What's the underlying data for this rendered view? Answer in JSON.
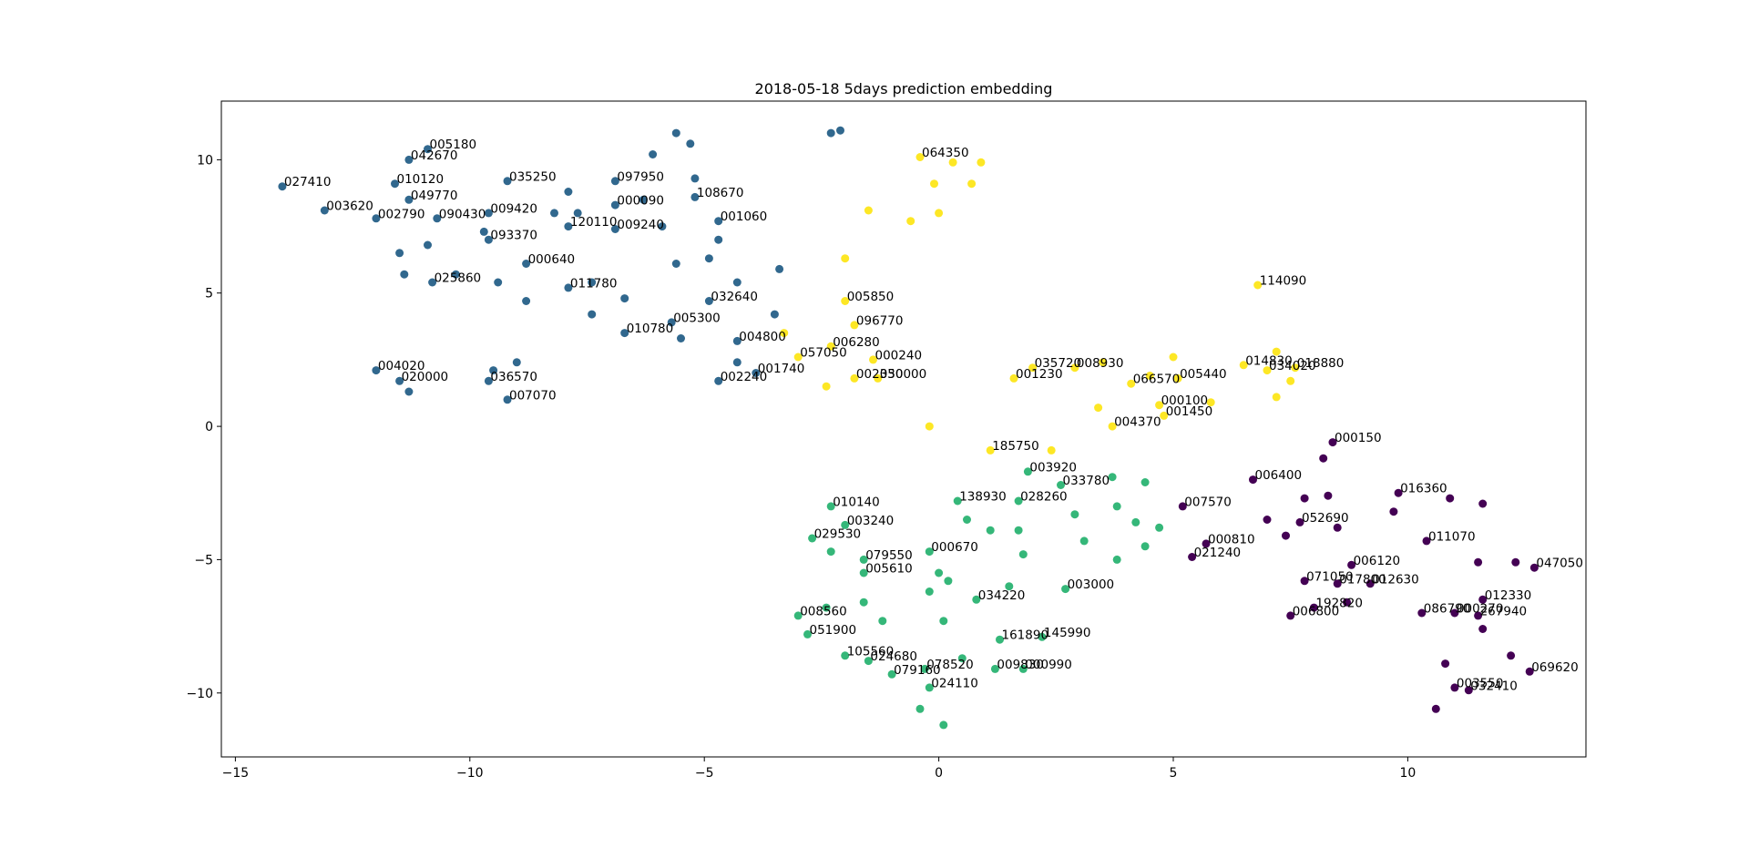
{
  "chart_data": {
    "type": "scatter",
    "title": "2018-05-18 5days prediction embedding",
    "xlabel": "",
    "ylabel": "",
    "xlim": [
      -15.3,
      13.8
    ],
    "ylim": [
      -12.4,
      12.2
    ],
    "xticks": [
      -15,
      -10,
      -5,
      0,
      5,
      10
    ],
    "yticks": [
      -10,
      -5,
      0,
      5,
      10
    ],
    "xtick_labels": [
      "−15",
      "−10",
      "−5",
      "0",
      "5",
      "10"
    ],
    "ytick_labels": [
      "−10",
      "−5",
      "0",
      "5",
      "10"
    ],
    "grid": false,
    "legend": false,
    "colors": {
      "cluster_0": "#440154",
      "cluster_1": "#31688e",
      "cluster_2": "#35b779",
      "cluster_3": "#fde725",
      "axes": "#000000",
      "background": "#ffffff"
    },
    "series": [
      {
        "cluster": 1,
        "color": "#31688e",
        "points": [
          {
            "x": -14.0,
            "y": 9.0,
            "label": "027410"
          },
          {
            "x": -13.1,
            "y": 8.1,
            "label": "003620"
          },
          {
            "x": -12.0,
            "y": 7.8,
            "label": "002790"
          },
          {
            "x": -11.6,
            "y": 9.1,
            "label": "010120"
          },
          {
            "x": -11.3,
            "y": 10.0,
            "label": "042670"
          },
          {
            "x": -10.9,
            "y": 10.4,
            "label": "005180"
          },
          {
            "x": -11.3,
            "y": 8.5,
            "label": "049770"
          },
          {
            "x": -10.7,
            "y": 7.8,
            "label": "090430"
          },
          {
            "x": -9.6,
            "y": 8.0,
            "label": "009420"
          },
          {
            "x": -9.6,
            "y": 7.0,
            "label": "093370"
          },
          {
            "x": -9.2,
            "y": 9.2,
            "label": "035250"
          },
          {
            "x": -8.8,
            "y": 6.1,
            "label": "000640"
          },
          {
            "x": -10.8,
            "y": 5.4,
            "label": "025860"
          },
          {
            "x": -7.9,
            "y": 7.5,
            "label": "120110"
          },
          {
            "x": -6.9,
            "y": 9.2,
            "label": "097950"
          },
          {
            "x": -6.9,
            "y": 8.3,
            "label": "000090"
          },
          {
            "x": -6.9,
            "y": 7.4,
            "label": "009240"
          },
          {
            "x": -5.2,
            "y": 8.6,
            "label": "108670"
          },
          {
            "x": -4.7,
            "y": 7.7,
            "label": "001060"
          },
          {
            "x": -7.9,
            "y": 5.2,
            "label": "011780"
          },
          {
            "x": -4.9,
            "y": 4.7,
            "label": "032640"
          },
          {
            "x": -5.7,
            "y": 3.9,
            "label": "005300"
          },
          {
            "x": -6.7,
            "y": 3.5,
            "label": "010780"
          },
          {
            "x": -4.3,
            "y": 3.2,
            "label": "004800"
          },
          {
            "x": -3.9,
            "y": 2.0,
            "label": "001740"
          },
          {
            "x": -4.7,
            "y": 1.7,
            "label": "002240"
          },
          {
            "x": -12.0,
            "y": 2.1,
            "label": "004020"
          },
          {
            "x": -11.5,
            "y": 1.7,
            "label": "020000"
          },
          {
            "x": -9.6,
            "y": 1.7,
            "label": "036570"
          },
          {
            "x": -9.2,
            "y": 1.0,
            "label": "007070"
          },
          {
            "x": -11.5,
            "y": 6.5,
            "label": ""
          },
          {
            "x": -11.4,
            "y": 5.7,
            "label": ""
          },
          {
            "x": -10.9,
            "y": 6.8,
            "label": ""
          },
          {
            "x": -10.3,
            "y": 5.7,
            "label": ""
          },
          {
            "x": -9.7,
            "y": 7.3,
            "label": ""
          },
          {
            "x": -9.4,
            "y": 5.4,
            "label": ""
          },
          {
            "x": -8.8,
            "y": 4.7,
            "label": ""
          },
          {
            "x": -8.2,
            "y": 8.0,
            "label": ""
          },
          {
            "x": -7.9,
            "y": 8.8,
            "label": ""
          },
          {
            "x": -7.7,
            "y": 8.0,
            "label": ""
          },
          {
            "x": -7.4,
            "y": 4.2,
            "label": ""
          },
          {
            "x": -7.4,
            "y": 5.4,
            "label": ""
          },
          {
            "x": -6.7,
            "y": 4.8,
            "label": ""
          },
          {
            "x": -6.3,
            "y": 8.5,
            "label": ""
          },
          {
            "x": -6.1,
            "y": 10.2,
            "label": ""
          },
          {
            "x": -5.9,
            "y": 7.5,
            "label": ""
          },
          {
            "x": -5.6,
            "y": 11.0,
            "label": ""
          },
          {
            "x": -5.3,
            "y": 10.6,
            "label": ""
          },
          {
            "x": -5.6,
            "y": 6.1,
            "label": ""
          },
          {
            "x": -5.5,
            "y": 3.3,
            "label": ""
          },
          {
            "x": -5.2,
            "y": 9.3,
            "label": ""
          },
          {
            "x": -4.9,
            "y": 6.3,
            "label": ""
          },
          {
            "x": -4.7,
            "y": 7.0,
            "label": ""
          },
          {
            "x": -4.3,
            "y": 5.4,
            "label": ""
          },
          {
            "x": -4.3,
            "y": 2.4,
            "label": ""
          },
          {
            "x": -3.5,
            "y": 4.2,
            "label": ""
          },
          {
            "x": -3.4,
            "y": 5.9,
            "label": ""
          },
          {
            "x": -2.3,
            "y": 11.0,
            "label": ""
          },
          {
            "x": -2.1,
            "y": 11.1,
            "label": ""
          },
          {
            "x": -11.3,
            "y": 1.3,
            "label": ""
          },
          {
            "x": -9.5,
            "y": 2.1,
            "label": ""
          },
          {
            "x": -9.0,
            "y": 2.4,
            "label": ""
          }
        ]
      },
      {
        "cluster": 3,
        "color": "#fde725",
        "points": [
          {
            "x": -0.4,
            "y": 10.1,
            "label": "064350"
          },
          {
            "x": -2.0,
            "y": 4.7,
            "label": "005850"
          },
          {
            "x": -1.8,
            "y": 3.8,
            "label": "096770"
          },
          {
            "x": -2.3,
            "y": 3.0,
            "label": "006280"
          },
          {
            "x": -3.0,
            "y": 2.6,
            "label": "057050"
          },
          {
            "x": -1.4,
            "y": 2.5,
            "label": "000240"
          },
          {
            "x": -1.8,
            "y": 1.8,
            "label": "002350"
          },
          {
            "x": -1.3,
            "y": 1.8,
            "label": "030000"
          },
          {
            "x": 1.6,
            "y": 1.8,
            "label": "001230"
          },
          {
            "x": 2.0,
            "y": 2.2,
            "label": "035720"
          },
          {
            "x": 2.9,
            "y": 2.2,
            "label": "008930"
          },
          {
            "x": 4.1,
            "y": 1.6,
            "label": "066570"
          },
          {
            "x": 5.1,
            "y": 1.8,
            "label": "005440"
          },
          {
            "x": 4.7,
            "y": 0.8,
            "label": "000100"
          },
          {
            "x": 4.8,
            "y": 0.4,
            "label": "001450"
          },
          {
            "x": 3.7,
            "y": 0.0,
            "label": "004370"
          },
          {
            "x": 1.1,
            "y": -0.9,
            "label": "185750"
          },
          {
            "x": 6.8,
            "y": 5.3,
            "label": "114090"
          },
          {
            "x": 6.5,
            "y": 2.3,
            "label": "014830"
          },
          {
            "x": 7.0,
            "y": 2.1,
            "label": "034020"
          },
          {
            "x": 7.6,
            "y": 2.2,
            "label": "018880"
          },
          {
            "x": 0.3,
            "y": 9.9,
            "label": ""
          },
          {
            "x": 0.9,
            "y": 9.9,
            "label": ""
          },
          {
            "x": -0.1,
            "y": 9.1,
            "label": ""
          },
          {
            "x": 0.7,
            "y": 9.1,
            "label": ""
          },
          {
            "x": -1.5,
            "y": 8.1,
            "label": ""
          },
          {
            "x": -0.6,
            "y": 7.7,
            "label": ""
          },
          {
            "x": 0.0,
            "y": 8.0,
            "label": ""
          },
          {
            "x": -2.0,
            "y": 6.3,
            "label": ""
          },
          {
            "x": -3.3,
            "y": 3.5,
            "label": ""
          },
          {
            "x": -2.4,
            "y": 1.5,
            "label": ""
          },
          {
            "x": -0.2,
            "y": 0.0,
            "label": ""
          },
          {
            "x": 2.4,
            "y": -0.9,
            "label": ""
          },
          {
            "x": 3.4,
            "y": 0.7,
            "label": ""
          },
          {
            "x": 3.5,
            "y": 2.4,
            "label": ""
          },
          {
            "x": 4.5,
            "y": 1.9,
            "label": ""
          },
          {
            "x": 5.0,
            "y": 2.6,
            "label": ""
          },
          {
            "x": 5.8,
            "y": 0.9,
            "label": ""
          },
          {
            "x": 7.2,
            "y": 2.8,
            "label": ""
          },
          {
            "x": 7.2,
            "y": 1.1,
            "label": ""
          },
          {
            "x": 7.5,
            "y": 1.7,
            "label": ""
          }
        ]
      },
      {
        "cluster": 2,
        "color": "#35b779",
        "points": [
          {
            "x": 1.9,
            "y": -1.7,
            "label": "003920"
          },
          {
            "x": 2.6,
            "y": -2.2,
            "label": "033780"
          },
          {
            "x": 0.4,
            "y": -2.8,
            "label": "138930"
          },
          {
            "x": 1.7,
            "y": -2.8,
            "label": "028260"
          },
          {
            "x": -2.3,
            "y": -3.0,
            "label": "010140"
          },
          {
            "x": -2.0,
            "y": -3.7,
            "label": "003240"
          },
          {
            "x": -2.7,
            "y": -4.2,
            "label": "029530"
          },
          {
            "x": -0.2,
            "y": -4.7,
            "label": "000670"
          },
          {
            "x": -1.6,
            "y": -5.0,
            "label": "079550"
          },
          {
            "x": -1.6,
            "y": -5.5,
            "label": "005610"
          },
          {
            "x": 2.7,
            "y": -6.1,
            "label": "003000"
          },
          {
            "x": 0.8,
            "y": -6.5,
            "label": "034220"
          },
          {
            "x": -3.0,
            "y": -7.1,
            "label": "008560"
          },
          {
            "x": -2.8,
            "y": -7.8,
            "label": "051900"
          },
          {
            "x": 1.3,
            "y": -8.0,
            "label": "161890"
          },
          {
            "x": 2.2,
            "y": -7.9,
            "label": "145990"
          },
          {
            "x": -2.0,
            "y": -8.6,
            "label": "105560"
          },
          {
            "x": -1.5,
            "y": -8.8,
            "label": "024680"
          },
          {
            "x": -1.0,
            "y": -9.3,
            "label": "079160"
          },
          {
            "x": -0.3,
            "y": -9.1,
            "label": "078520"
          },
          {
            "x": 1.2,
            "y": -9.1,
            "label": "009830"
          },
          {
            "x": 1.8,
            "y": -9.1,
            "label": "000990"
          },
          {
            "x": -0.2,
            "y": -9.8,
            "label": "024110"
          },
          {
            "x": 3.7,
            "y": -1.9,
            "label": ""
          },
          {
            "x": 4.4,
            "y": -2.1,
            "label": ""
          },
          {
            "x": 3.8,
            "y": -3.0,
            "label": ""
          },
          {
            "x": 2.9,
            "y": -3.3,
            "label": ""
          },
          {
            "x": 4.2,
            "y": -3.6,
            "label": ""
          },
          {
            "x": 4.7,
            "y": -3.8,
            "label": ""
          },
          {
            "x": 3.1,
            "y": -4.3,
            "label": ""
          },
          {
            "x": 4.4,
            "y": -4.5,
            "label": ""
          },
          {
            "x": 3.8,
            "y": -5.0,
            "label": ""
          },
          {
            "x": 0.6,
            "y": -3.5,
            "label": ""
          },
          {
            "x": 1.1,
            "y": -3.9,
            "label": ""
          },
          {
            "x": 1.7,
            "y": -3.9,
            "label": ""
          },
          {
            "x": 1.8,
            "y": -4.8,
            "label": ""
          },
          {
            "x": -2.3,
            "y": -4.7,
            "label": ""
          },
          {
            "x": 0.0,
            "y": -5.5,
            "label": ""
          },
          {
            "x": 0.2,
            "y": -5.8,
            "label": ""
          },
          {
            "x": -0.2,
            "y": -6.2,
            "label": ""
          },
          {
            "x": 1.5,
            "y": -6.0,
            "label": ""
          },
          {
            "x": -1.6,
            "y": -6.6,
            "label": ""
          },
          {
            "x": -2.4,
            "y": -6.8,
            "label": ""
          },
          {
            "x": -1.2,
            "y": -7.3,
            "label": ""
          },
          {
            "x": 0.1,
            "y": -7.3,
            "label": ""
          },
          {
            "x": 0.5,
            "y": -8.7,
            "label": ""
          },
          {
            "x": -0.4,
            "y": -10.6,
            "label": ""
          },
          {
            "x": 0.1,
            "y": -11.2,
            "label": ""
          }
        ]
      },
      {
        "cluster": 0,
        "color": "#440154",
        "points": [
          {
            "x": 8.4,
            "y": -0.6,
            "label": "000150"
          },
          {
            "x": 6.7,
            "y": -2.0,
            "label": "006400"
          },
          {
            "x": 5.2,
            "y": -3.0,
            "label": "007570"
          },
          {
            "x": 9.8,
            "y": -2.5,
            "label": "016360"
          },
          {
            "x": 7.7,
            "y": -3.6,
            "label": "052690"
          },
          {
            "x": 5.7,
            "y": -4.4,
            "label": "000810"
          },
          {
            "x": 5.4,
            "y": -4.9,
            "label": "021240"
          },
          {
            "x": 10.4,
            "y": -4.3,
            "label": "011070"
          },
          {
            "x": 8.8,
            "y": -5.2,
            "label": "006120"
          },
          {
            "x": 7.8,
            "y": -5.8,
            "label": "071050"
          },
          {
            "x": 8.5,
            "y": -5.9,
            "label": "017800"
          },
          {
            "x": 9.2,
            "y": -5.9,
            "label": "012630"
          },
          {
            "x": 12.7,
            "y": -5.3,
            "label": "047050"
          },
          {
            "x": 8.0,
            "y": -6.8,
            "label": "192820"
          },
          {
            "x": 7.5,
            "y": -7.1,
            "label": "006800"
          },
          {
            "x": 11.6,
            "y": -6.5,
            "label": "012330"
          },
          {
            "x": 10.3,
            "y": -7.0,
            "label": "086790"
          },
          {
            "x": 11.0,
            "y": -7.0,
            "label": "000270"
          },
          {
            "x": 11.5,
            "y": -7.1,
            "label": "267940"
          },
          {
            "x": 12.6,
            "y": -9.2,
            "label": "069620"
          },
          {
            "x": 11.0,
            "y": -9.8,
            "label": "003550"
          },
          {
            "x": 11.3,
            "y": -9.9,
            "label": "032410"
          },
          {
            "x": 8.2,
            "y": -1.2,
            "label": ""
          },
          {
            "x": 8.3,
            "y": -2.6,
            "label": ""
          },
          {
            "x": 7.8,
            "y": -2.7,
            "label": ""
          },
          {
            "x": 7.0,
            "y": -3.5,
            "label": ""
          },
          {
            "x": 7.4,
            "y": -4.1,
            "label": ""
          },
          {
            "x": 8.5,
            "y": -3.8,
            "label": ""
          },
          {
            "x": 9.7,
            "y": -3.2,
            "label": ""
          },
          {
            "x": 10.9,
            "y": -2.7,
            "label": ""
          },
          {
            "x": 11.6,
            "y": -2.9,
            "label": ""
          },
          {
            "x": 11.5,
            "y": -5.1,
            "label": ""
          },
          {
            "x": 12.3,
            "y": -5.1,
            "label": ""
          },
          {
            "x": 8.7,
            "y": -6.6,
            "label": ""
          },
          {
            "x": 11.6,
            "y": -7.6,
            "label": ""
          },
          {
            "x": 10.8,
            "y": -8.9,
            "label": ""
          },
          {
            "x": 12.2,
            "y": -8.6,
            "label": ""
          },
          {
            "x": 10.6,
            "y": -10.6,
            "label": ""
          }
        ]
      }
    ]
  }
}
